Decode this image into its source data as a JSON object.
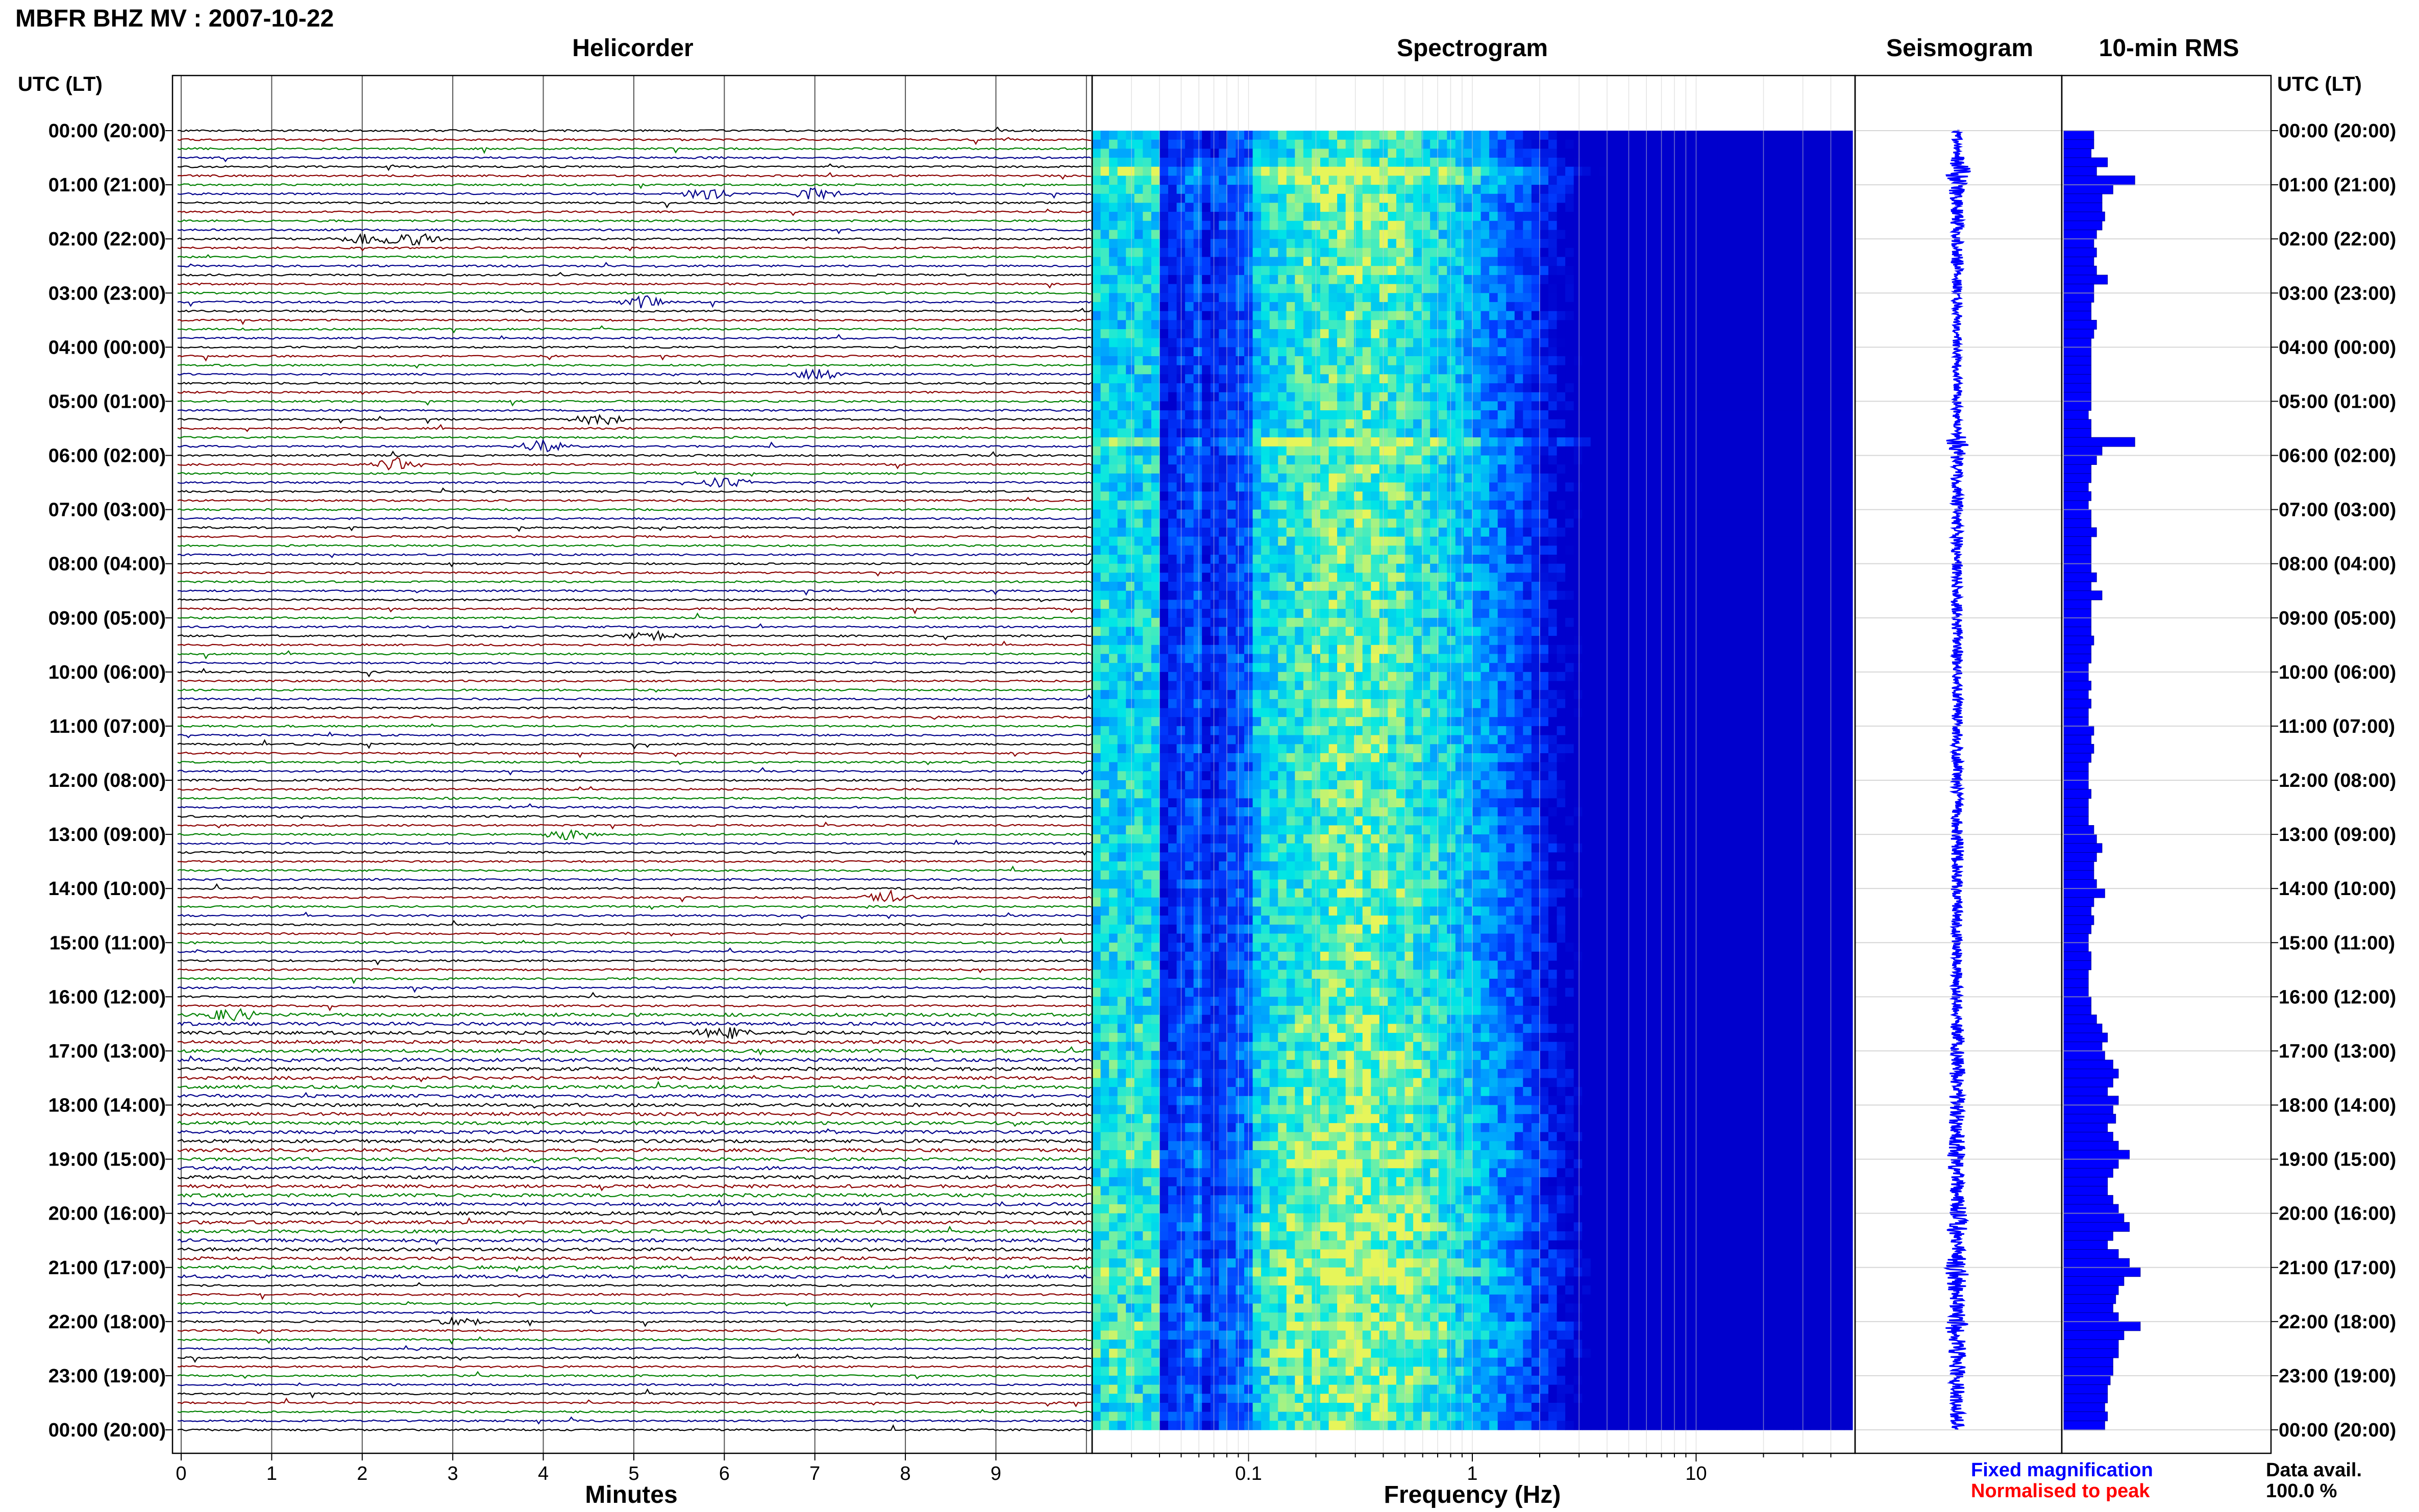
{
  "header": {
    "title": "MBFR BHZ MV : 2007-10-22"
  },
  "panels": {
    "helicorder": "Helicorder",
    "spectrogram": "Spectrogram",
    "seismogram": "Seismogram",
    "rms": "10-min RMS"
  },
  "axis": {
    "time_label": "UTC (LT)",
    "minutes_label": "Minutes",
    "frequency_label": "Frequency (Hz)"
  },
  "legend": {
    "fixed": "Fixed magnification",
    "normalised": "Normalised to peak",
    "fixed_color": "#0000ff",
    "normalised_color": "#ff0000"
  },
  "data_availability": {
    "label": "Data avail.",
    "value": "100.0 %"
  },
  "colors": {
    "trace_cycle": [
      "#000000",
      "#8b0000",
      "#008000",
      "#00008b"
    ],
    "seismogram": "#0000ff",
    "rms_bar": "#0000ff",
    "spectrogram_scale": [
      "#0000ff",
      "#1e90ff",
      "#00ffff",
      "#ffff66"
    ]
  },
  "chart_data": [
    {
      "type": "helicorder",
      "title": "Helicorder",
      "xlabel": "Minutes",
      "xlim": [
        0,
        10
      ],
      "x_ticks": [
        "0",
        "1",
        "2",
        "3",
        "4",
        "5",
        "6",
        "7",
        "8",
        "9"
      ],
      "y_ticks": [
        "00:00 (20:00)",
        "01:00 (21:00)",
        "02:00 (22:00)",
        "03:00 (23:00)",
        "04:00 (00:00)",
        "05:00 (01:00)",
        "06:00 (02:00)",
        "07:00 (03:00)",
        "08:00 (04:00)",
        "09:00 (05:00)",
        "10:00 (06:00)",
        "11:00 (07:00)",
        "12:00 (08:00)",
        "13:00 (09:00)",
        "14:00 (10:00)",
        "15:00 (11:00)",
        "16:00 (12:00)",
        "17:00 (13:00)",
        "18:00 (14:00)",
        "19:00 (15:00)",
        "20:00 (16:00)",
        "21:00 (17:00)",
        "22:00 (18:00)",
        "23:00 (19:00)",
        "00:00 (20:00)"
      ],
      "lines_per_hour": 6,
      "events": [
        {
          "hour": 1.17,
          "minute": 5.8
        },
        {
          "hour": 1.17,
          "minute": 7.0
        },
        {
          "hour": 2.0,
          "minute": 2.6
        },
        {
          "hour": 2.0,
          "minute": 2.1
        },
        {
          "hour": 3.17,
          "minute": 5.1
        },
        {
          "hour": 4.5,
          "minute": 7.0
        },
        {
          "hour": 5.33,
          "minute": 4.6
        },
        {
          "hour": 5.83,
          "minute": 4.0
        },
        {
          "hour": 6.5,
          "minute": 6.0
        },
        {
          "hour": 6.17,
          "minute": 2.4
        },
        {
          "hour": 9.33,
          "minute": 5.2
        },
        {
          "hour": 13.0,
          "minute": 4.3
        },
        {
          "hour": 14.17,
          "minute": 7.8
        },
        {
          "hour": 16.33,
          "minute": 0.6
        },
        {
          "hour": 16.67,
          "minute": 6.0
        },
        {
          "hour": 22.0,
          "minute": 3.1
        }
      ]
    },
    {
      "type": "heatmap",
      "title": "Spectrogram",
      "xlabel": "Frequency (Hz)",
      "x_scale": "log",
      "xlim": [
        0.02,
        50
      ],
      "x_ticks": [
        "0.1",
        "1",
        "10"
      ],
      "x_tick_values": [
        0.1,
        1,
        10
      ],
      "hours": 24,
      "dominant_frequency_hz": 0.3
    },
    {
      "type": "line",
      "title": "Seismogram",
      "hours": 24,
      "relative_amplitude": [
        1.0,
        1.0,
        1.0,
        1.6,
        3.2,
        2.4,
        1.8,
        1.6,
        1.4,
        1.4,
        1.5,
        1.3,
        1.3,
        1.3,
        1.4,
        1.3,
        1.2,
        1.2,
        1.1,
        1.1,
        1.1,
        1.1,
        1.1,
        1.0,
        1.0,
        1.0,
        1.0,
        1.0,
        1.0,
        1.0,
        1.0,
        1.0,
        1.0,
        1.0,
        2.8,
        1.8,
        1.4,
        1.2,
        1.3,
        1.2,
        1.2,
        1.2,
        1.3,
        1.2,
        1.2,
        1.3,
        1.2,
        1.2,
        1.2,
        1.2,
        1.3,
        1.2,
        1.4,
        1.2,
        1.2,
        1.3,
        1.2,
        1.3,
        1.3,
        1.2,
        1.2,
        1.2,
        1.2,
        1.3,
        1.2,
        1.2,
        1.3,
        1.2,
        1.3,
        1.2,
        1.2,
        1.2,
        1.2,
        1.3,
        1.2,
        1.2,
        1.2,
        1.3,
        1.4,
        1.5,
        1.4,
        1.3,
        1.3,
        1.3,
        1.4,
        1.4,
        1.2,
        1.3,
        1.2,
        1.2,
        1.2,
        1.3,
        1.2,
        1.2,
        1.2,
        1.2,
        1.2,
        1.3,
        1.4,
        1.5,
        1.6,
        1.4,
        1.5,
        1.6,
        1.8,
        1.7,
        1.6,
        1.8,
        1.7,
        1.8,
        1.6,
        1.8,
        1.9,
        2.4,
        2.0,
        1.8,
        1.6,
        1.6,
        1.8,
        2.0,
        2.2,
        2.4,
        1.8,
        1.6,
        1.9,
        2.4,
        2.6,
        2.2,
        2.0,
        1.9,
        1.8,
        2.0,
        2.6,
        2.2,
        2.0,
        2.0,
        1.8,
        1.8,
        1.7,
        1.6,
        1.6,
        1.5,
        1.6,
        1.5
      ]
    },
    {
      "type": "bar",
      "title": "10-min RMS",
      "hours": 24,
      "bins_per_hour": 6,
      "relative_rms": [
        0.55,
        0.55,
        0.5,
        0.8,
        0.6,
        1.3,
        0.9,
        0.7,
        0.7,
        0.75,
        0.7,
        0.6,
        0.55,
        0.6,
        0.55,
        0.6,
        0.8,
        0.55,
        0.55,
        0.5,
        0.5,
        0.6,
        0.55,
        0.5,
        0.5,
        0.5,
        0.5,
        0.5,
        0.5,
        0.5,
        0.5,
        0.45,
        0.5,
        0.5,
        1.3,
        0.7,
        0.6,
        0.5,
        0.5,
        0.45,
        0.5,
        0.45,
        0.5,
        0.5,
        0.6,
        0.5,
        0.5,
        0.5,
        0.5,
        0.6,
        0.5,
        0.7,
        0.5,
        0.5,
        0.5,
        0.5,
        0.55,
        0.5,
        0.5,
        0.45,
        0.45,
        0.5,
        0.45,
        0.5,
        0.45,
        0.45,
        0.55,
        0.5,
        0.55,
        0.5,
        0.45,
        0.45,
        0.45,
        0.5,
        0.45,
        0.45,
        0.45,
        0.55,
        0.6,
        0.7,
        0.6,
        0.55,
        0.55,
        0.6,
        0.75,
        0.55,
        0.5,
        0.55,
        0.5,
        0.45,
        0.45,
        0.5,
        0.5,
        0.45,
        0.45,
        0.45,
        0.5,
        0.5,
        0.6,
        0.7,
        0.8,
        0.7,
        0.75,
        0.9,
        1.0,
        0.9,
        0.8,
        1.0,
        0.9,
        0.95,
        0.8,
        0.9,
        1.0,
        1.2,
        1.0,
        0.9,
        0.8,
        0.8,
        0.9,
        1.0,
        1.1,
        1.2,
        0.9,
        0.8,
        1.0,
        1.2,
        1.4,
        1.1,
        1.0,
        0.95,
        0.9,
        1.0,
        1.4,
        1.1,
        1.0,
        1.0,
        0.9,
        0.9,
        0.85,
        0.8,
        0.8,
        0.75,
        0.8,
        0.75
      ]
    }
  ]
}
